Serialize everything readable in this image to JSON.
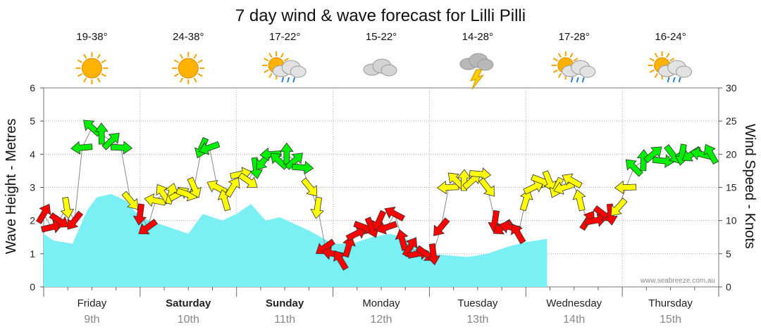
{
  "chart_data": {
    "type": "line",
    "title": "7 day wind & wave forecast for Lilli Pilli",
    "y_left": {
      "label": "Wave Height - Metres",
      "range": [
        0,
        6
      ],
      "ticks": [
        "0",
        "1",
        "2",
        "3",
        "4",
        "5",
        "6"
      ]
    },
    "y_right": {
      "label": "Wind Speed - Knots",
      "range": [
        0,
        30
      ],
      "ticks": [
        "0",
        "5",
        "10",
        "15",
        "20",
        "25",
        "30"
      ]
    },
    "days": [
      {
        "name": "Friday",
        "date": "9th",
        "bold": false,
        "temp": "19-38°",
        "icon": "sun-icon"
      },
      {
        "name": "Saturday",
        "date": "10th",
        "bold": true,
        "temp": "24-38°",
        "icon": "sun-icon"
      },
      {
        "name": "Sunday",
        "date": "11th",
        "bold": true,
        "temp": "17-22°",
        "icon": "sun-cloud-rain-icon"
      },
      {
        "name": "Monday",
        "date": "12th",
        "bold": false,
        "temp": "15-22°",
        "icon": "cloud-icon"
      },
      {
        "name": "Tuesday",
        "date": "13th",
        "bold": false,
        "temp": "14-28°",
        "icon": "thunderstorm-icon"
      },
      {
        "name": "Wednesday",
        "date": "14th",
        "bold": false,
        "temp": "17-28°",
        "icon": "sun-cloud-rain-icon"
      },
      {
        "name": "Thursday",
        "date": "15th",
        "bold": false,
        "temp": "16-24°",
        "icon": "sun-cloud-rain-icon"
      }
    ],
    "wave_height_series": {
      "x_day": [
        0,
        0.1,
        0.3,
        0.45,
        0.55,
        0.7,
        0.85,
        1.0,
        1.2,
        1.5,
        1.65,
        1.75,
        1.85,
        2.0,
        2.15,
        2.3,
        2.45,
        2.6,
        2.75,
        3.0,
        3.2,
        3.4,
        3.6,
        3.8,
        4.0,
        4.2,
        4.4,
        4.6,
        4.8,
        5.0,
        5.22
      ],
      "values": [
        1.6,
        1.4,
        1.3,
        2.3,
        2.7,
        2.8,
        2.6,
        2.1,
        1.9,
        1.6,
        2.2,
        2.1,
        2.0,
        2.2,
        2.5,
        2.0,
        2.1,
        1.9,
        1.7,
        1.3,
        1.3,
        1.5,
        1.6,
        1.4,
        1.0,
        0.95,
        0.9,
        1.0,
        1.2,
        1.35,
        1.45
      ],
      "color": "#7af0f5"
    },
    "wind_series": {
      "x_day": [
        0.0,
        0.08,
        0.16,
        0.24,
        0.32,
        0.4,
        0.5,
        0.6,
        0.7,
        0.8,
        0.9,
        1.0,
        1.08,
        1.16,
        1.24,
        1.32,
        1.4,
        1.48,
        1.56,
        1.64,
        1.72,
        1.8,
        1.88,
        1.96,
        2.04,
        2.12,
        2.2,
        2.28,
        2.36,
        2.44,
        2.52,
        2.6,
        2.68,
        2.76,
        2.84,
        2.92,
        3.0,
        3.08,
        3.16,
        3.24,
        3.32,
        3.4,
        3.48,
        3.56,
        3.64,
        3.72,
        3.8,
        3.88,
        3.96,
        4.04,
        4.12,
        4.2,
        4.28,
        4.36,
        4.44,
        4.52,
        4.6,
        4.68,
        4.76,
        4.84,
        4.92,
        5.0,
        5.08,
        5.16,
        5.24,
        5.32,
        5.4,
        5.48,
        5.56,
        5.64,
        5.72,
        5.8,
        5.88,
        5.96,
        6.04,
        6.12,
        6.22,
        6.32,
        6.42,
        6.52,
        6.62,
        6.72,
        6.82,
        6.92
      ],
      "knots": [
        11,
        9,
        10,
        12,
        10,
        21,
        24,
        23,
        22,
        21,
        13,
        11,
        9,
        13,
        14,
        14,
        14,
        14,
        15,
        21,
        21,
        15,
        13,
        15,
        17,
        16,
        18,
        19,
        20,
        19,
        20,
        19,
        18,
        15,
        12,
        6,
        5,
        4,
        6,
        8,
        9,
        9,
        10,
        9,
        11,
        7,
        6,
        5,
        5,
        5,
        9,
        15,
        16,
        16,
        16,
        17,
        15,
        10,
        9,
        9,
        8,
        13,
        15,
        16,
        16,
        15,
        15,
        16,
        13,
        10,
        10,
        11,
        11,
        12,
        15,
        18,
        19,
        20,
        19,
        20,
        20,
        20,
        20,
        20
      ]
    },
    "wind_colors": {
      "low": "#ff0000",
      "mid": "#ffff00",
      "high": "#00ee00"
    },
    "credit": "www.seabreeze.com.au"
  }
}
